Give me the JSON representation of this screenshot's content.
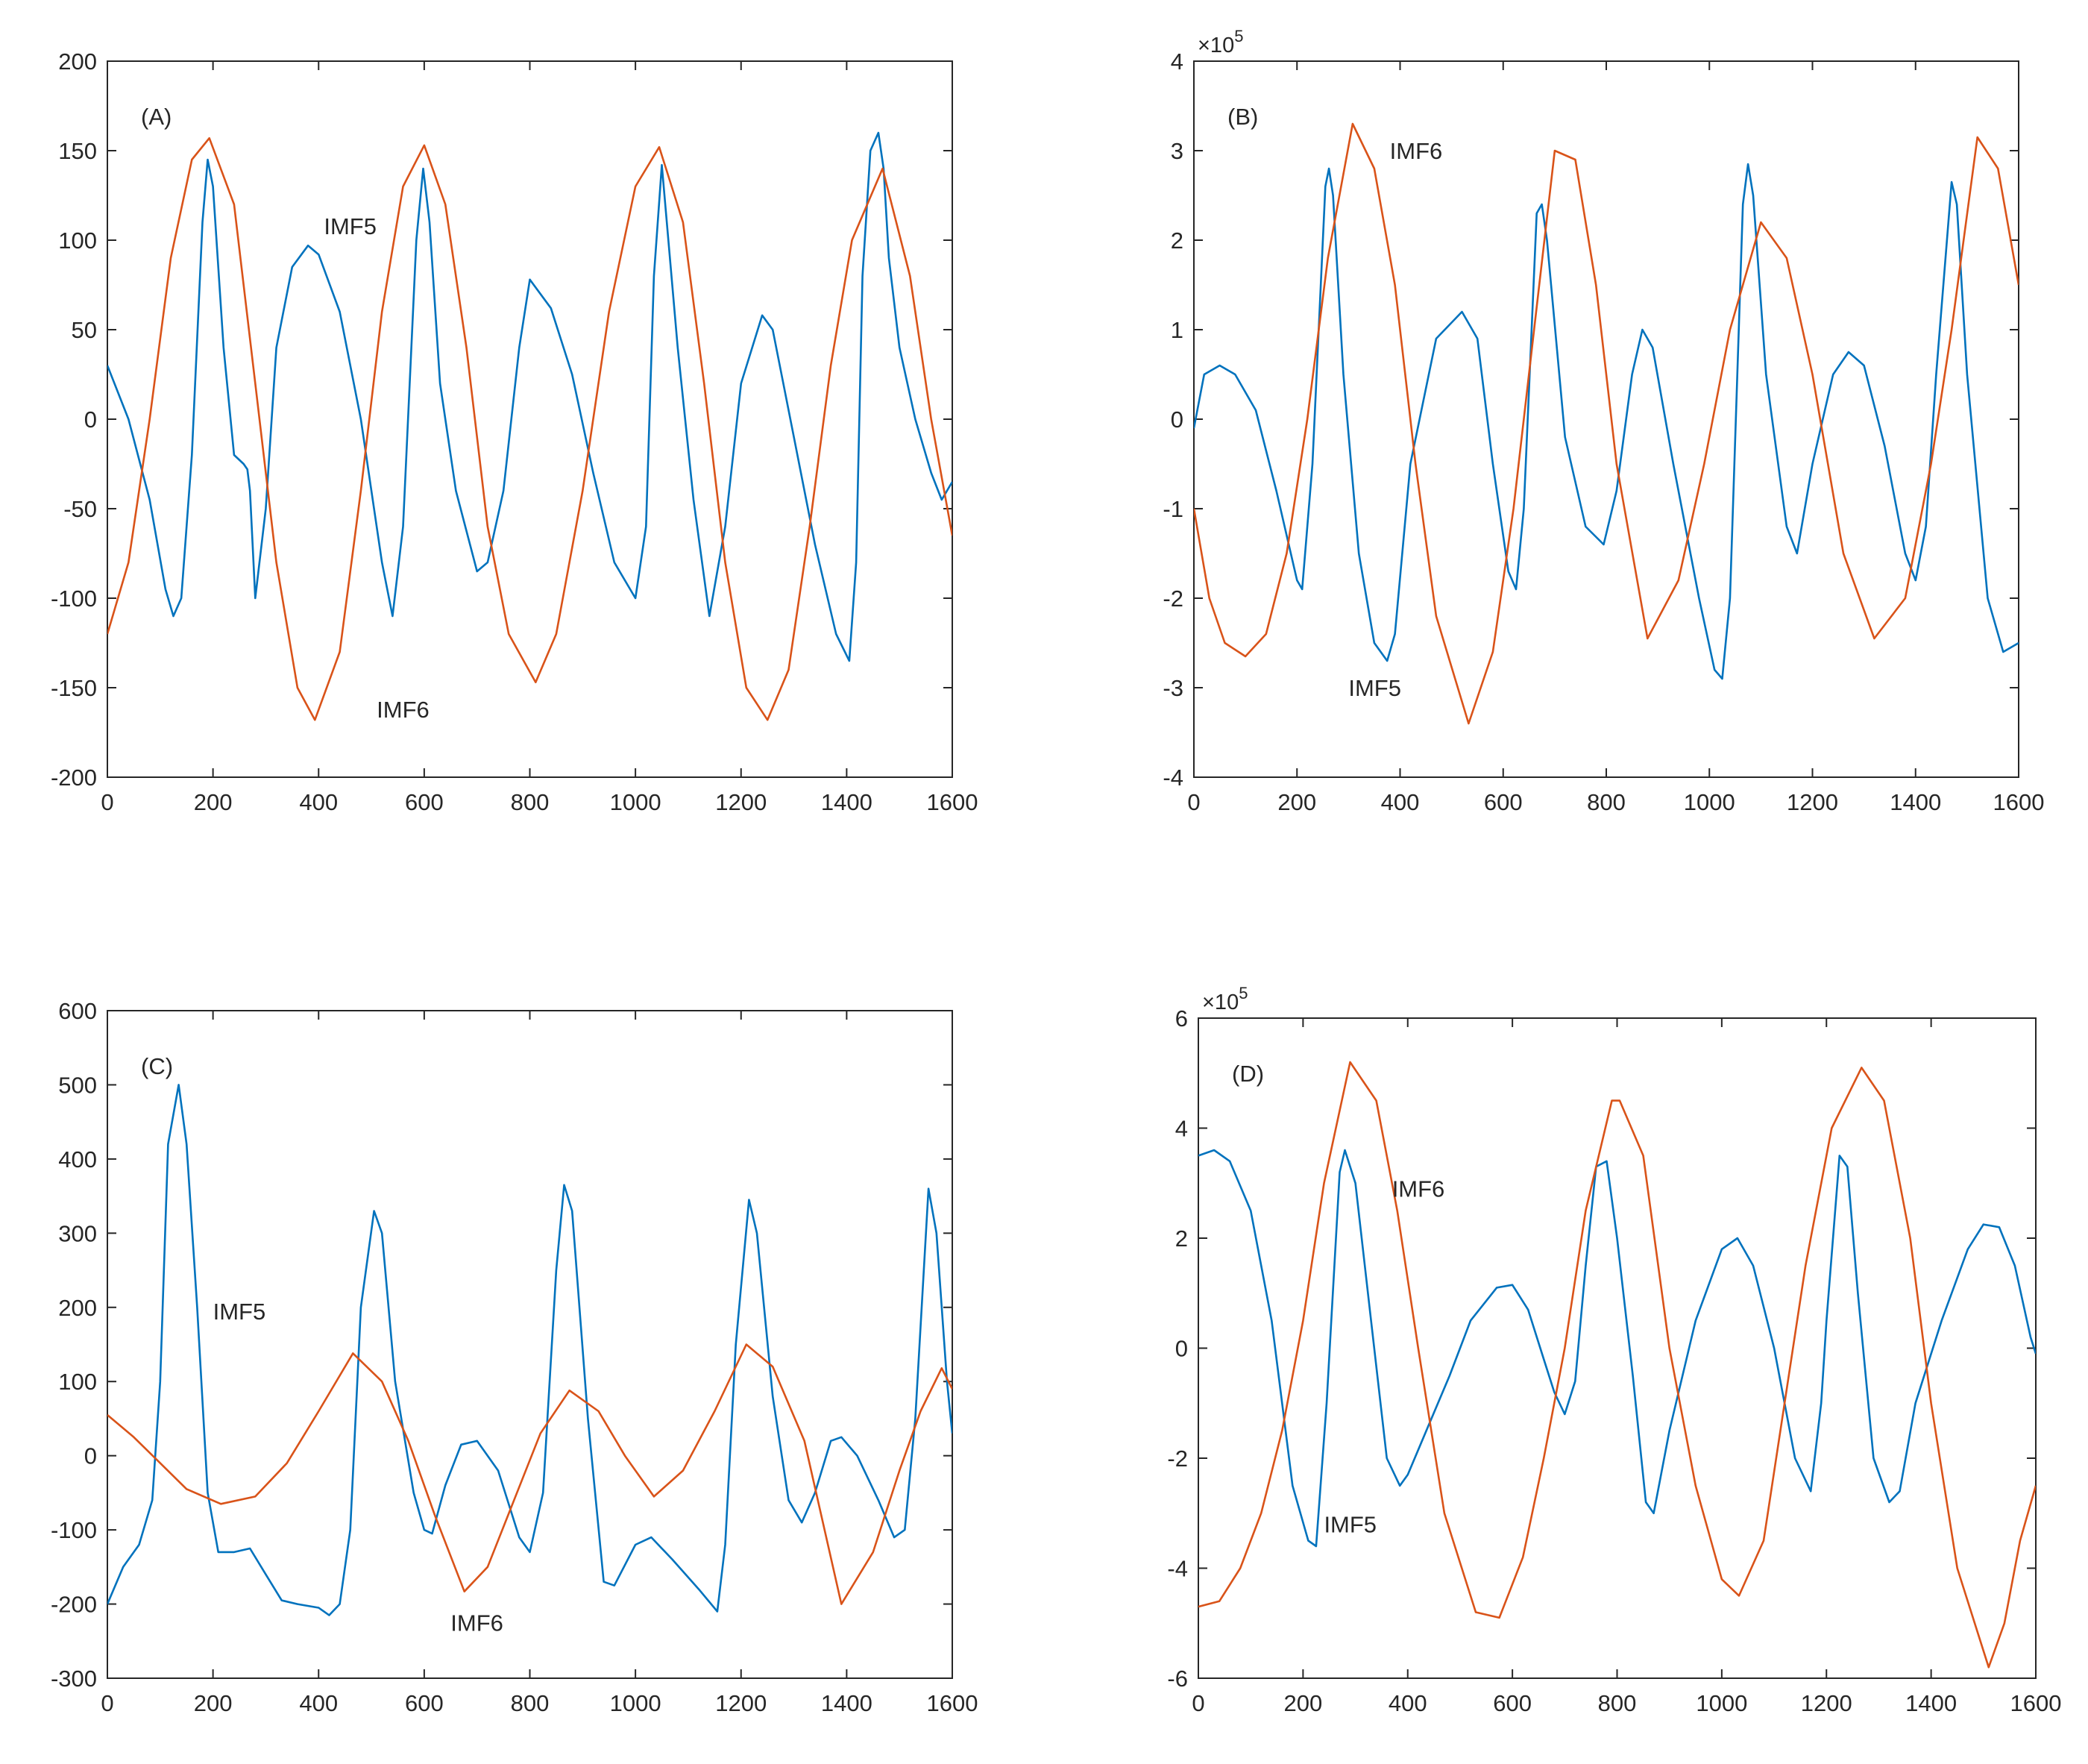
{
  "figure": {
    "colors": {
      "imf5": "#0072BD",
      "imf6": "#D95319",
      "axis": "#262626"
    }
  },
  "chart_data": [
    {
      "type": "line",
      "panel_label": "(A)",
      "exponent": "",
      "xlim": [
        0,
        1600
      ],
      "ylim": [
        -200,
        200
      ],
      "xticks": [
        "0",
        "200",
        "400",
        "600",
        "800",
        "1000",
        "1200",
        "1400",
        "1600"
      ],
      "yticks": [
        "-200",
        "-150",
        "-100",
        "-50",
        "0",
        "50",
        "100",
        "150",
        "200"
      ],
      "annotations": [
        {
          "text": "IMF5",
          "x": 410,
          "y": 108
        },
        {
          "text": "IMF6",
          "x": 510,
          "y": -162
        }
      ],
      "series": [
        {
          "name": "IMF5",
          "color": "#0072BD",
          "x": [
            0,
            40,
            80,
            110,
            125,
            140,
            160,
            180,
            190,
            200,
            220,
            240,
            258,
            265,
            270,
            280,
            300,
            320,
            350,
            380,
            400,
            440,
            480,
            520,
            540,
            560,
            585,
            598,
            610,
            630,
            660,
            700,
            720,
            750,
            780,
            800,
            840,
            880,
            920,
            960,
            1000,
            1020,
            1035,
            1050,
            1080,
            1110,
            1140,
            1170,
            1200,
            1240,
            1260,
            1300,
            1340,
            1380,
            1405,
            1418,
            1430,
            1445,
            1460,
            1470,
            1480,
            1500,
            1530,
            1560,
            1580,
            1600
          ],
          "y": [
            30,
            0,
            -45,
            -95,
            -110,
            -100,
            -20,
            110,
            145,
            130,
            40,
            -20,
            -25,
            -28,
            -40,
            -100,
            -50,
            40,
            85,
            97,
            92,
            60,
            0,
            -80,
            -110,
            -60,
            100,
            140,
            110,
            20,
            -40,
            -85,
            -80,
            -40,
            40,
            78,
            62,
            25,
            -30,
            -80,
            -100,
            -60,
            80,
            142,
            40,
            -45,
            -110,
            -60,
            20,
            58,
            50,
            -10,
            -70,
            -120,
            -135,
            -80,
            80,
            150,
            160,
            140,
            90,
            40,
            0,
            -30,
            -45,
            -35
          ]
        },
        {
          "name": "IMF6",
          "color": "#D95319",
          "x": [
            0,
            40,
            80,
            120,
            160,
            193,
            240,
            280,
            320,
            360,
            393,
            440,
            480,
            520,
            560,
            600,
            640,
            680,
            720,
            760,
            811,
            850,
            900,
            950,
            1000,
            1045,
            1090,
            1130,
            1170,
            1210,
            1250,
            1290,
            1330,
            1370,
            1410,
            1468,
            1520,
            1560,
            1600
          ],
          "y": [
            -120,
            -80,
            0,
            90,
            145,
            157,
            120,
            20,
            -80,
            -150,
            -168,
            -130,
            -40,
            60,
            130,
            153,
            120,
            40,
            -60,
            -120,
            -147,
            -120,
            -40,
            60,
            130,
            152,
            110,
            20,
            -80,
            -150,
            -168,
            -140,
            -60,
            30,
            100,
            140,
            80,
            0,
            -65
          ]
        }
      ]
    },
    {
      "type": "line",
      "panel_label": "(B)",
      "exponent": "5",
      "xlim": [
        0,
        1600
      ],
      "ylim": [
        -4,
        4
      ],
      "xticks": [
        "0",
        "200",
        "400",
        "600",
        "800",
        "1000",
        "1200",
        "1400",
        "1600"
      ],
      "yticks": [
        "-4",
        "-3",
        "-2",
        "-1",
        "0",
        "1",
        "2",
        "3",
        "4"
      ],
      "annotations": [
        {
          "text": "IMF6",
          "x": 380,
          "y": 3.0
        },
        {
          "text": "IMF5",
          "x": 300,
          "y": -3.0
        }
      ],
      "series": [
        {
          "name": "IMF5",
          "color": "#0072BD",
          "x": [
            0,
            20,
            50,
            80,
            120,
            160,
            200,
            210,
            230,
            255,
            262,
            270,
            290,
            320,
            350,
            375,
            390,
            420,
            470,
            520,
            550,
            580,
            610,
            625,
            640,
            665,
            675,
            685,
            720,
            760,
            795,
            820,
            850,
            870,
            890,
            930,
            980,
            1010,
            1025,
            1040,
            1065,
            1075,
            1085,
            1110,
            1150,
            1170,
            1200,
            1240,
            1270,
            1300,
            1340,
            1380,
            1400,
            1420,
            1440,
            1470,
            1480,
            1500,
            1540,
            1570,
            1600
          ],
          "y": [
            -0.1,
            0.5,
            0.6,
            0.5,
            0.1,
            -0.8,
            -1.8,
            -1.9,
            -0.5,
            2.6,
            2.8,
            2.5,
            0.5,
            -1.5,
            -2.5,
            -2.7,
            -2.4,
            -0.5,
            0.9,
            1.2,
            0.9,
            -0.5,
            -1.7,
            -1.9,
            -1.0,
            2.3,
            2.4,
            2.0,
            -0.2,
            -1.2,
            -1.4,
            -0.8,
            0.5,
            1.0,
            0.8,
            -0.5,
            -2.0,
            -2.8,
            -2.9,
            -2.0,
            2.4,
            2.85,
            2.5,
            0.5,
            -1.2,
            -1.5,
            -0.5,
            0.5,
            0.75,
            0.6,
            -0.3,
            -1.5,
            -1.8,
            -1.2,
            0.5,
            2.65,
            2.4,
            0.5,
            -2.0,
            -2.6,
            -2.5
          ]
        },
        {
          "name": "IMF6",
          "color": "#D95319",
          "x": [
            0,
            30,
            60,
            100,
            140,
            180,
            220,
            260,
            308,
            350,
            390,
            430,
            470,
            533,
            580,
            620,
            660,
            700,
            740,
            780,
            820,
            880,
            940,
            990,
            1040,
            1100,
            1150,
            1200,
            1260,
            1320,
            1380,
            1430,
            1470,
            1520,
            1560,
            1600
          ],
          "y": [
            -1.0,
            -2.0,
            -2.5,
            -2.65,
            -2.4,
            -1.5,
            0,
            1.8,
            3.3,
            2.8,
            1.5,
            -0.5,
            -2.2,
            -3.4,
            -2.6,
            -1.0,
            1.0,
            3.0,
            2.9,
            1.5,
            -0.5,
            -2.45,
            -1.8,
            -0.5,
            1.0,
            2.2,
            1.8,
            0.5,
            -1.5,
            -2.45,
            -2.0,
            -0.5,
            1.0,
            3.15,
            2.8,
            1.5
          ]
        }
      ]
    },
    {
      "type": "line",
      "panel_label": "(C)",
      "exponent": "",
      "xlim": [
        0,
        1600
      ],
      "ylim": [
        -300,
        600
      ],
      "xticks": [
        "0",
        "200",
        "400",
        "600",
        "800",
        "1000",
        "1200",
        "1400",
        "1600"
      ],
      "yticks": [
        "-300",
        "-200",
        "-100",
        "0",
        "100",
        "200",
        "300",
        "400",
        "500",
        "600"
      ],
      "annotations": [
        {
          "text": "IMF5",
          "x": 200,
          "y": 195
        },
        {
          "text": "IMF6",
          "x": 650,
          "y": -225
        }
      ],
      "series": [
        {
          "name": "IMF5",
          "color": "#0072BD",
          "x": [
            0,
            30,
            60,
            85,
            100,
            115,
            135,
            150,
            170,
            190,
            210,
            240,
            270,
            300,
            330,
            360,
            400,
            420,
            440,
            460,
            480,
            505,
            520,
            545,
            580,
            600,
            615,
            640,
            670,
            700,
            740,
            780,
            800,
            825,
            850,
            865,
            880,
            910,
            940,
            960,
            1000,
            1030,
            1070,
            1120,
            1155,
            1170,
            1190,
            1215,
            1230,
            1260,
            1290,
            1315,
            1340,
            1370,
            1390,
            1420,
            1460,
            1490,
            1510,
            1530,
            1555,
            1570,
            1590,
            1600
          ],
          "y": [
            -200,
            -150,
            -120,
            -60,
            100,
            420,
            500,
            420,
            200,
            -50,
            -130,
            -130,
            -125,
            -160,
            -195,
            -200,
            -205,
            -215,
            -200,
            -100,
            200,
            330,
            300,
            100,
            -50,
            -100,
            -105,
            -40,
            15,
            20,
            -20,
            -110,
            -130,
            -50,
            250,
            365,
            330,
            50,
            -170,
            -175,
            -120,
            -110,
            -140,
            -180,
            -210,
            -120,
            150,
            345,
            300,
            80,
            -60,
            -90,
            -50,
            20,
            25,
            0,
            -60,
            -110,
            -100,
            50,
            360,
            300,
            100,
            30
          ]
        },
        {
          "name": "IMF6",
          "color": "#D95319",
          "x": [
            0,
            50,
            100,
            150,
            215,
            280,
            340,
            400,
            465,
            520,
            570,
            620,
            676,
            720,
            770,
            820,
            875,
            930,
            980,
            1035,
            1090,
            1150,
            1210,
            1260,
            1320,
            1390,
            1450,
            1500,
            1540,
            1580,
            1600
          ],
          "y": [
            55,
            25,
            -10,
            -45,
            -65,
            -55,
            -10,
            60,
            138,
            100,
            20,
            -80,
            -183,
            -150,
            -60,
            30,
            88,
            60,
            0,
            -55,
            -20,
            60,
            150,
            120,
            20,
            -200,
            -130,
            -20,
            60,
            118,
            90
          ]
        }
      ]
    },
    {
      "type": "line",
      "panel_label": "(D)",
      "exponent": "5",
      "xlim": [
        0,
        1600
      ],
      "ylim": [
        -6,
        6
      ],
      "xticks": [
        "0",
        "200",
        "400",
        "600",
        "800",
        "1000",
        "1200",
        "1400",
        "1600"
      ],
      "yticks": [
        "-6",
        "-4",
        "-2",
        "0",
        "2",
        "4",
        "6"
      ],
      "annotations": [
        {
          "text": "IMF6",
          "x": 370,
          "y": 2.9
        },
        {
          "text": "IMF5",
          "x": 240,
          "y": -3.2
        }
      ],
      "series": [
        {
          "name": "IMF5",
          "color": "#0072BD",
          "x": [
            0,
            30,
            60,
            100,
            140,
            180,
            210,
            225,
            245,
            270,
            280,
            300,
            330,
            360,
            385,
            400,
            440,
            480,
            520,
            570,
            600,
            630,
            660,
            680,
            700,
            720,
            740,
            760,
            780,
            800,
            830,
            855,
            870,
            900,
            950,
            1000,
            1030,
            1060,
            1100,
            1140,
            1170,
            1190,
            1200,
            1225,
            1240,
            1260,
            1290,
            1320,
            1340,
            1370,
            1420,
            1470,
            1500,
            1530,
            1560,
            1590,
            1600
          ],
          "y": [
            3.5,
            3.6,
            3.4,
            2.5,
            0.5,
            -2.5,
            -3.5,
            -3.6,
            -1.0,
            3.2,
            3.6,
            3.0,
            0.5,
            -2.0,
            -2.5,
            -2.3,
            -1.4,
            -0.5,
            0.5,
            1.1,
            1.15,
            0.7,
            -0.2,
            -0.8,
            -1.2,
            -0.6,
            1.5,
            3.3,
            3.4,
            2.0,
            -0.5,
            -2.8,
            -3.0,
            -1.5,
            0.5,
            1.8,
            2.0,
            1.5,
            0.0,
            -2.0,
            -2.6,
            -1.0,
            0.5,
            3.5,
            3.3,
            1.0,
            -2.0,
            -2.8,
            -2.6,
            -1.0,
            0.5,
            1.8,
            2.25,
            2.2,
            1.5,
            0.2,
            -0.1
          ]
        },
        {
          "name": "IMF6",
          "color": "#D95319",
          "x": [
            0,
            40,
            80,
            120,
            160,
            200,
            240,
            290,
            340,
            380,
            420,
            470,
            530,
            575,
            620,
            660,
            700,
            740,
            790,
            805,
            850,
            900,
            950,
            1000,
            1033,
            1080,
            1120,
            1160,
            1210,
            1267,
            1310,
            1360,
            1400,
            1450,
            1510,
            1540,
            1570,
            1600
          ],
          "y": [
            -4.7,
            -4.6,
            -4.0,
            -3.0,
            -1.5,
            0.5,
            3.0,
            5.2,
            4.5,
            2.5,
            0.0,
            -3.0,
            -4.8,
            -4.9,
            -3.8,
            -2.0,
            0.0,
            2.5,
            4.5,
            4.5,
            3.5,
            0.0,
            -2.5,
            -4.2,
            -4.5,
            -3.5,
            -1.0,
            1.5,
            4.0,
            5.1,
            4.5,
            2.0,
            -1.0,
            -4.0,
            -5.8,
            -5.0,
            -3.5,
            -2.5
          ]
        }
      ]
    }
  ]
}
